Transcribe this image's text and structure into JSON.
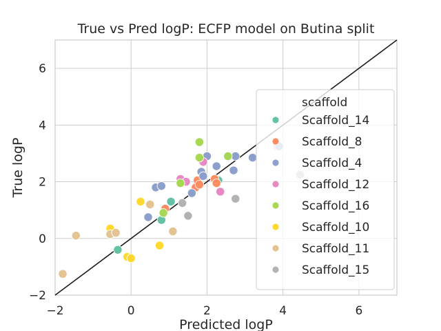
{
  "chart_data": {
    "type": "scatter",
    "title": "True vs Pred logP: ECFP model on Butina split",
    "xlabel": "Predicted logP",
    "ylabel": "True logP",
    "xlim": [
      -2,
      7
    ],
    "ylim": [
      -2,
      7
    ],
    "xticks": [
      "−2",
      "0",
      "2",
      "4",
      "6"
    ],
    "yticks": [
      "−2",
      "0",
      "2",
      "4",
      "6"
    ],
    "grid": true,
    "diagonal_line": true,
    "legend": {
      "title": "scaffold",
      "placement": "right"
    },
    "series": [
      {
        "name": "Scaffold_14",
        "color": "#66c2a5",
        "points": [
          [
            -0.35,
            -0.4
          ],
          [
            0.8,
            0.65
          ],
          [
            1.05,
            1.3
          ],
          [
            2.3,
            2.05
          ]
        ]
      },
      {
        "name": "Scaffold_8",
        "color": "#fc8d62",
        "points": [
          [
            0.9,
            1.05
          ],
          [
            1.7,
            1.8
          ],
          [
            1.75,
            2.05
          ],
          [
            1.8,
            1.9
          ],
          [
            2.2,
            2.1
          ],
          [
            2.25,
            1.95
          ],
          [
            3.85,
            3.25
          ]
        ]
      },
      {
        "name": "Scaffold_4",
        "color": "#8da0cb",
        "points": [
          [
            0.45,
            0.75
          ],
          [
            0.65,
            1.8
          ],
          [
            0.8,
            1.85
          ],
          [
            1.6,
            1.6
          ],
          [
            1.85,
            2.35
          ],
          [
            1.9,
            2.2
          ],
          [
            2.0,
            2.9
          ],
          [
            2.25,
            2.55
          ],
          [
            2.7,
            2.4
          ],
          [
            2.75,
            2.9
          ],
          [
            3.2,
            2.85
          ],
          [
            3.9,
            3.25
          ]
        ]
      },
      {
        "name": "Scaffold_12",
        "color": "#e78ac3",
        "points": [
          [
            1.3,
            2.1
          ],
          [
            1.45,
            2.0
          ],
          [
            1.9,
            2.7
          ],
          [
            2.35,
            1.65
          ]
        ]
      },
      {
        "name": "Scaffold_16",
        "color": "#a6d854",
        "points": [
          [
            0.85,
            0.9
          ],
          [
            1.3,
            1.95
          ],
          [
            1.8,
            3.4
          ],
          [
            1.8,
            2.85
          ],
          [
            2.55,
            2.9
          ]
        ]
      },
      {
        "name": "Scaffold_10",
        "color": "#ffd92f",
        "points": [
          [
            -0.55,
            0.35
          ],
          [
            -0.1,
            -0.65
          ],
          [
            0.0,
            -0.7
          ],
          [
            0.25,
            1.3
          ],
          [
            0.75,
            -0.25
          ]
        ]
      },
      {
        "name": "Scaffold_11",
        "color": "#e5c494",
        "points": [
          [
            -1.8,
            -1.25
          ],
          [
            -1.45,
            0.1
          ],
          [
            -0.55,
            0.15
          ],
          [
            -0.4,
            0.2
          ],
          [
            0.5,
            1.2
          ],
          [
            1.1,
            0.25
          ]
        ]
      },
      {
        "name": "Scaffold_15",
        "color": "#b3b3b3",
        "points": [
          [
            1.35,
            1.25
          ],
          [
            1.5,
            0.8
          ],
          [
            2.75,
            1.4
          ],
          [
            4.45,
            2.25
          ]
        ]
      }
    ]
  }
}
